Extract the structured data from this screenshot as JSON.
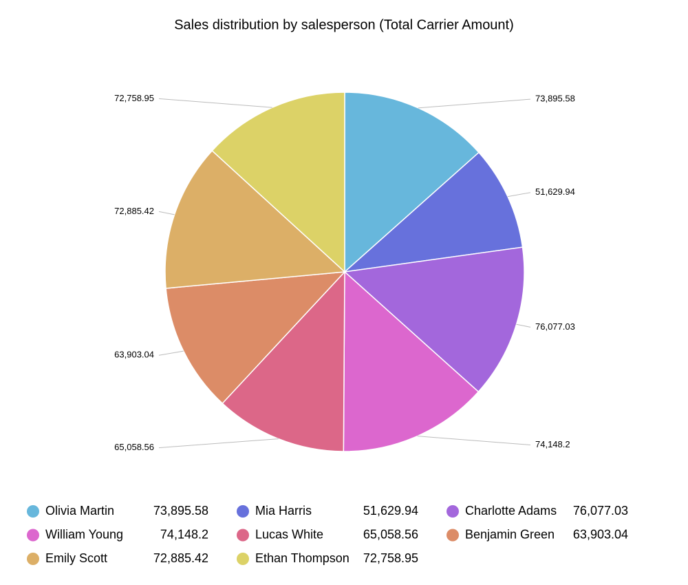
{
  "chart_data": {
    "type": "pie",
    "title": "Sales distribution by salesperson (Total Carrier Amount)",
    "categories": [
      "Olivia Martin",
      "Mia Harris",
      "Charlotte Adams",
      "William Young",
      "Lucas White",
      "Benjamin Green",
      "Emily Scott",
      "Ethan Thompson"
    ],
    "values": [
      73895.58,
      51629.94,
      76077.03,
      74148.2,
      65058.56,
      63903.04,
      72885.42,
      72758.95
    ],
    "value_labels": [
      "73,895.58",
      "51,629.94",
      "76,077.03",
      "74,148.2",
      "65,058.56",
      "63,903.04",
      "72,885.42",
      "72,758.95"
    ],
    "colors": [
      "#67b7dc",
      "#6771dc",
      "#a367dc",
      "#dc67ce",
      "#dc6788",
      "#dc8c67",
      "#dcaf67",
      "#dcd267"
    ]
  }
}
